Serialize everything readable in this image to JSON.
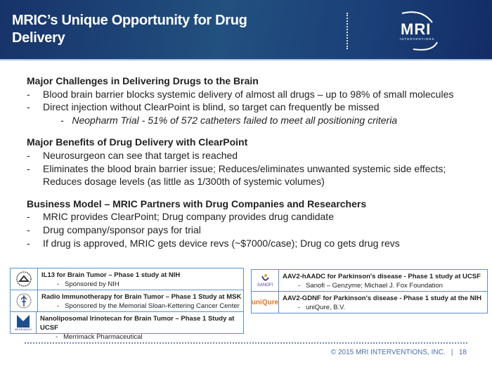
{
  "header": {
    "title": "MRIC’s Unique Opportunity for Drug Delivery",
    "logo": "MRI INTERVENTIONS"
  },
  "sections": [
    {
      "heading": "Major Challenges in Delivering Drugs to the Brain",
      "items": [
        "Blood brain barrier blocks systemic delivery of almost all drugs – up to 98% of small molecules",
        "Direct injection without ClearPoint is blind, so target can frequently be missed"
      ],
      "subitem": "Neopharm Trial - 51% of 572 catheters failed to meet all positioning criteria"
    },
    {
      "heading": "Major Benefits of Drug Delivery with ClearPoint",
      "items": [
        "Neurosurgeon can see that target is reached",
        "Eliminates the blood brain barrier issue; Reduces/eliminates unwanted systemic side effects; Reduces dosage levels  (as little as 1/300th of systemic volumes)"
      ]
    },
    {
      "heading": "Business Model – MRIC Partners with Drug Companies and Researchers",
      "items": [
        "MRIC provides ClearPoint; Drug company provides drug candidate",
        "Drug company/sponsor pays for trial",
        "If drug is approved, MRIC gets device revs (~$7000/case); Drug co gets drug revs"
      ]
    }
  ],
  "studies_left": [
    {
      "logo": "NIH seal",
      "title": "IL13 for Brain Tumor – Phase 1 study at NIH",
      "sponsor": "Sponsored by NIH"
    },
    {
      "logo": "MSK",
      "title": "Radio Immunotherapy for Brain Tumor – Phase 1 Study at MSK",
      "sponsor": "Sponsored by the Memorial Sloan-Kettering Cancer Center"
    },
    {
      "logo": "MERRIMACK",
      "title": "Nanoliposomal Irinotecan for Brain Tumor – Phase 1 Study at UCSF",
      "sponsor": "Merrimack Pharmaceutical"
    }
  ],
  "studies_right": [
    {
      "logo": "SANOFI",
      "title": "AAV2-hAADC for Parkinson's disease - Phase 1 study at UCSF",
      "sponsor": "Sanofi – Genzyme; Michael J. Fox Foundation"
    },
    {
      "logo": "uniQure",
      "title": "AAV2-GDNF for Parkinson's disease - Phase 1 study at the NIH",
      "sponsor": "uniQure, B.V."
    }
  ],
  "footer": {
    "copyright": "© 2015 MRI INTERVENTIONS, INC.",
    "separator": "|",
    "page": "18"
  },
  "dash": "-"
}
